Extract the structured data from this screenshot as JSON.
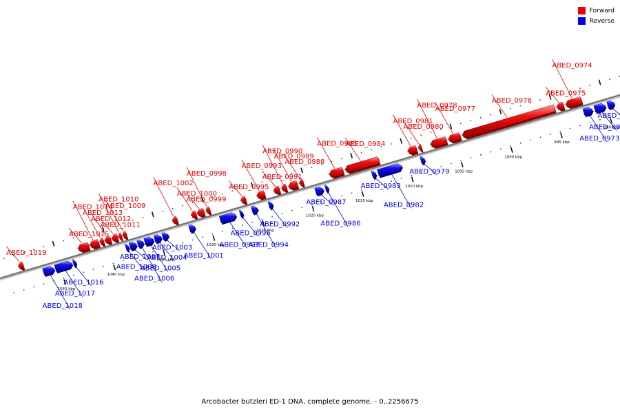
{
  "legend": {
    "forward_label": "Forward",
    "reverse_label": "Reverse",
    "forward_color": "#e60000",
    "reverse_color": "#0000e6"
  },
  "footer": "Arcobacter butzleri ED-1 DNA, complete genome. - 0..2256675",
  "genome": {
    "orientation": "descending",
    "tick_labels": [
      "990 kbp",
      "995 kbp",
      "1000 kbp",
      "1005 kbp",
      "1010 kbp",
      "1015 kbp",
      "1020 kbp",
      "1025 kbp",
      "1030 kbp",
      "1035 kbp",
      "1040 kbp",
      "1045 kbp"
    ],
    "genes": [
      {
        "label": "ABED_0971",
        "strand": "reverse",
        "start": 989.2,
        "end": 989.9
      },
      {
        "label": "ABED_0972",
        "strand": "reverse",
        "start": 990.1,
        "end": 991.2
      },
      {
        "label": "ABED_0973",
        "strand": "reverse",
        "start": 991.4,
        "end": 992.3
      },
      {
        "label": "ABED_0974",
        "strand": "forward",
        "start": 992.2,
        "end": 993.8
      },
      {
        "label": "ABED_0975",
        "strand": "forward",
        "start": 994.0,
        "end": 994.7
      },
      {
        "label": "ABED_0976",
        "strand": "forward",
        "start": 994.9,
        "end": 1004.2
      },
      {
        "label": "ABED_0977",
        "strand": "forward",
        "start": 1004.4,
        "end": 1005.6
      },
      {
        "label": "ABED_0978",
        "strand": "forward",
        "start": 1005.8,
        "end": 1007.4
      },
      {
        "label": "ABED_0979",
        "strand": "reverse",
        "start": 1008.3,
        "end": 1008.7
      },
      {
        "label": "ABED_0980",
        "strand": "forward",
        "start": 1008.3,
        "end": 1008.6
      },
      {
        "label": "ABED_0981",
        "strand": "forward",
        "start": 1008.8,
        "end": 1009.7
      },
      {
        "label": "ABED_0982",
        "strand": "reverse",
        "start": 1010.6,
        "end": 1013.0
      },
      {
        "label": "ABED_0983",
        "strand": "reverse",
        "start": 1013.2,
        "end": 1013.6
      },
      {
        "label": "ABED_0984",
        "strand": "forward",
        "start": 1012.6,
        "end": 1016.0
      },
      {
        "label": "ABED_0985",
        "strand": "forward",
        "start": 1016.2,
        "end": 1017.6
      },
      {
        "label": "ABED_0986",
        "strand": "reverse",
        "start": 1018.0,
        "end": 1018.3
      },
      {
        "label": "ABED_0987",
        "strand": "reverse",
        "start": 1018.5,
        "end": 1019.3
      },
      {
        "label": "ABED_0988",
        "strand": "forward",
        "start": 1020.2,
        "end": 1020.6
      },
      {
        "label": "ABED_0989",
        "strand": "forward",
        "start": 1020.8,
        "end": 1021.7
      },
      {
        "label": "ABED_0990",
        "strand": "forward",
        "start": 1021.9,
        "end": 1022.4
      },
      {
        "label": "ABED_0991",
        "strand": "forward",
        "start": 1022.6,
        "end": 1023.2
      },
      {
        "label": "ABED_0992",
        "strand": "reverse",
        "start": 1023.6,
        "end": 1024.0
      },
      {
        "label": "ABED_0993",
        "strand": "forward",
        "start": 1024.1,
        "end": 1024.9
      },
      {
        "label": "ABED_0994",
        "strand": "reverse",
        "start": 1025.1,
        "end": 1025.7
      },
      {
        "label": "ABED_0995",
        "strand": "forward",
        "start": 1026.0,
        "end": 1026.5
      },
      {
        "label": "ABED_0996",
        "strand": "reverse",
        "start": 1026.6,
        "end": 1026.9
      },
      {
        "label": "ABED_0997",
        "strand": "reverse",
        "start": 1027.3,
        "end": 1028.9
      },
      {
        "label": "ABED_0998",
        "strand": "forward",
        "start": 1029.6,
        "end": 1030.0
      },
      {
        "label": "ABED_0999",
        "strand": "forward",
        "start": 1030.2,
        "end": 1030.9
      },
      {
        "label": "ABED_1000",
        "strand": "forward",
        "start": 1031.0,
        "end": 1031.5
      },
      {
        "label": "ABED_1001",
        "strand": "reverse",
        "start": 1031.4,
        "end": 1032.0
      },
      {
        "label": "ABED_1002",
        "strand": "forward",
        "start": 1032.9,
        "end": 1033.4
      },
      {
        "label": "ABED_1003",
        "strand": "reverse",
        "start": 1034.1,
        "end": 1034.7
      },
      {
        "label": "ABED_1004",
        "strand": "reverse",
        "start": 1034.8,
        "end": 1035.5
      },
      {
        "label": "ABED_1005",
        "strand": "reverse",
        "start": 1035.6,
        "end": 1036.5
      },
      {
        "label": "ABED_1006",
        "strand": "reverse",
        "start": 1036.6,
        "end": 1037.2
      },
      {
        "label": "ABED_1007",
        "strand": "reverse",
        "start": 1037.3,
        "end": 1038.0
      },
      {
        "label": "ABED_1008",
        "strand": "reverse",
        "start": 1038.1,
        "end": 1038.4
      },
      {
        "label": "ABED_1009",
        "strand": "forward",
        "start": 1038.0,
        "end": 1038.4
      },
      {
        "label": "ABED_1010",
        "strand": "forward",
        "start": 1038.5,
        "end": 1038.8
      },
      {
        "label": "ABED_1011",
        "strand": "forward",
        "start": 1038.9,
        "end": 1039.5
      },
      {
        "label": "ABED_1012",
        "strand": "forward",
        "start": 1039.6,
        "end": 1040.2
      },
      {
        "label": "ABED_1013",
        "strand": "forward",
        "start": 1040.3,
        "end": 1040.7
      },
      {
        "label": "ABED_1014",
        "strand": "forward",
        "start": 1040.8,
        "end": 1041.7
      },
      {
        "label": "ABED_1015",
        "strand": "forward",
        "start": 1041.8,
        "end": 1042.9
      },
      {
        "label": "ABED_1016",
        "strand": "reverse",
        "start": 1043.4,
        "end": 1043.7
      },
      {
        "label": "ABED_1017",
        "strand": "reverse",
        "start": 1043.8,
        "end": 1045.5
      },
      {
        "label": "ABED_1018",
        "strand": "reverse",
        "start": 1045.6,
        "end": 1046.7
      },
      {
        "label": "ABED_1019",
        "strand": "forward",
        "start": 1048.4,
        "end": 1048.9
      }
    ]
  }
}
